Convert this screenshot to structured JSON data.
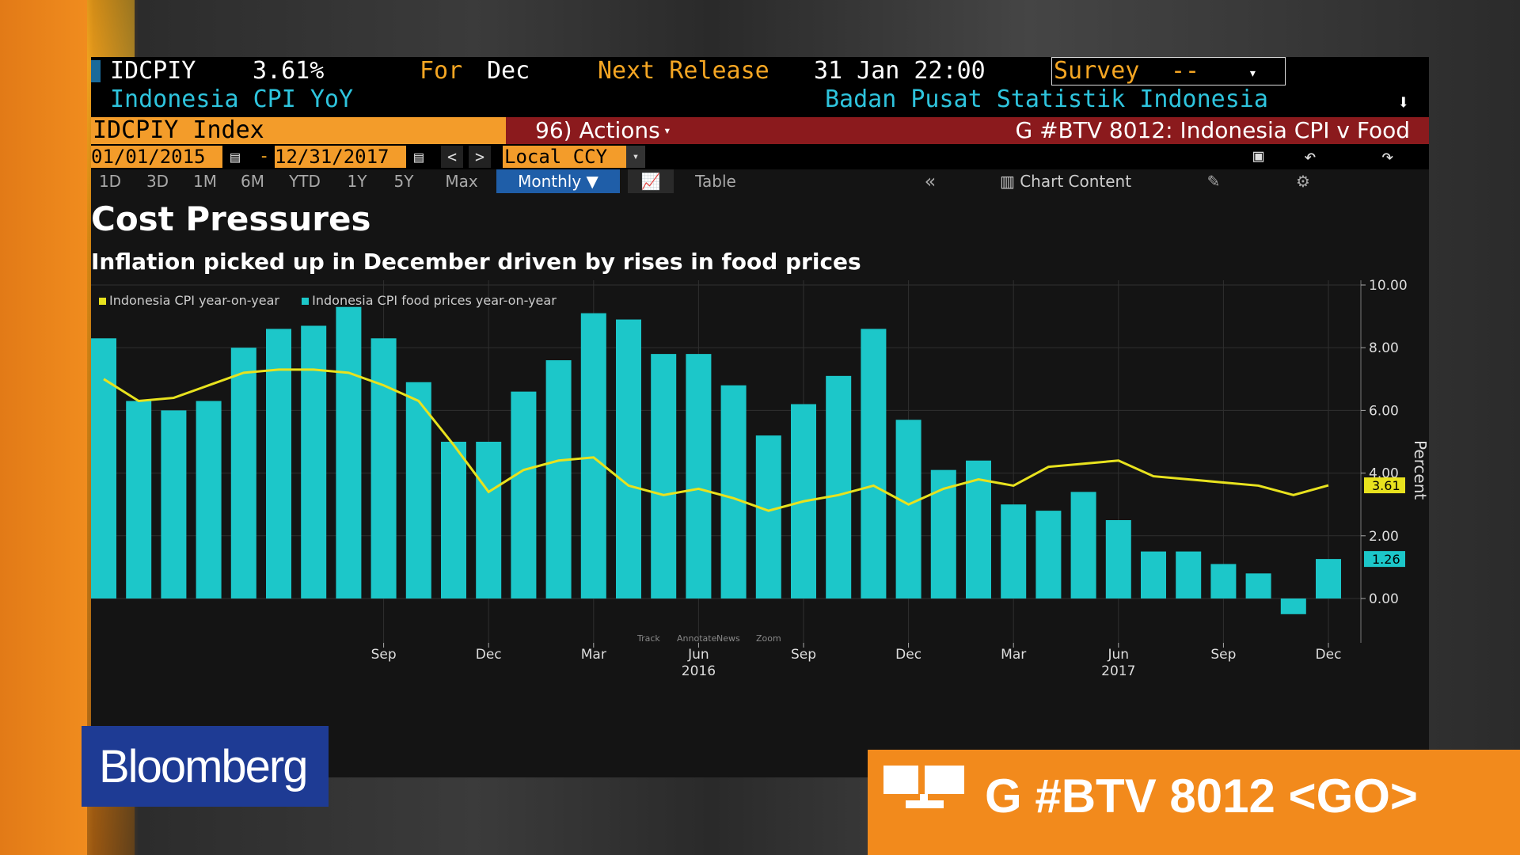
{
  "header": {
    "ticker": "IDCPIY",
    "value": "3.61%",
    "for_label": "For",
    "for_period": "Dec",
    "next_release_label": "Next Release",
    "next_release_value": "31 Jan 22:00",
    "survey_label": "Survey",
    "survey_value": "--",
    "description": "Indonesia CPI YoY",
    "source": "Badan Pusat Statistik Indonesia",
    "security": "IDCPIY Index",
    "actions_label": "96) Actions",
    "function_title": "G #BTV 8012: Indonesia CPI v Food",
    "start_date": "01/01/2015",
    "end_date": "12/31/2017",
    "currency": "Local CCY"
  },
  "toolbar": {
    "periods": [
      "1D",
      "3D",
      "1M",
      "6M",
      "YTD",
      "1Y",
      "5Y",
      "Max"
    ],
    "frequency": "Monthly",
    "table_label": "Table",
    "chart_content_label": "Chart Content",
    "mini_labels": [
      "Track",
      "Annotate",
      "News",
      "Zoom"
    ]
  },
  "chart_data": {
    "type": "bar",
    "title": "Cost Pressures",
    "subtitle": "Inflation picked up in December driven by rises in food prices",
    "ylabel": "Percent",
    "ylim": [
      -1.0,
      10.0
    ],
    "yticks": [
      "10.00",
      "8.00",
      "6.00",
      "4.00",
      "2.00",
      "0.00"
    ],
    "x": [
      "2015-01",
      "2015-02",
      "2015-03",
      "2015-04",
      "2015-05",
      "2015-06",
      "2015-07",
      "2015-08",
      "2015-09",
      "2015-10",
      "2015-11",
      "2015-12",
      "2016-01",
      "2016-02",
      "2016-03",
      "2016-04",
      "2016-05",
      "2016-06",
      "2016-07",
      "2016-08",
      "2016-09",
      "2016-10",
      "2016-11",
      "2016-12",
      "2017-01",
      "2017-02",
      "2017-03",
      "2017-04",
      "2017-05",
      "2017-06",
      "2017-07",
      "2017-08",
      "2017-09",
      "2017-10",
      "2017-11",
      "2017-12"
    ],
    "x_tick_labels": [
      {
        "month": "2015-09",
        "label": "Sep"
      },
      {
        "month": "2015-12",
        "label": "Dec"
      },
      {
        "month": "2016-03",
        "label": "Mar"
      },
      {
        "month": "2016-06",
        "label": "Jun",
        "year": "2016"
      },
      {
        "month": "2016-09",
        "label": "Sep"
      },
      {
        "month": "2016-12",
        "label": "Dec"
      },
      {
        "month": "2017-03",
        "label": "Mar"
      },
      {
        "month": "2017-06",
        "label": "Jun",
        "year": "2017"
      },
      {
        "month": "2017-09",
        "label": "Sep"
      },
      {
        "month": "2017-12",
        "label": "Dec"
      }
    ],
    "series": [
      {
        "name": "Indonesia CPI food prices year-on-year",
        "kind": "bar",
        "color": "#1cc7c9",
        "values": [
          8.3,
          6.3,
          6.0,
          6.3,
          8.0,
          8.6,
          8.7,
          9.3,
          8.3,
          6.9,
          5.0,
          5.0,
          6.6,
          7.6,
          9.1,
          8.9,
          7.8,
          7.8,
          6.8,
          5.2,
          6.2,
          7.1,
          8.6,
          5.7,
          4.1,
          4.4,
          3.0,
          2.8,
          3.4,
          2.5,
          1.5,
          1.5,
          1.1,
          0.8,
          -0.5,
          1.26
        ]
      },
      {
        "name": "Indonesia CPI year-on-year",
        "kind": "line",
        "color": "#e8e21e",
        "values": [
          7.0,
          6.3,
          6.4,
          6.8,
          7.2,
          7.3,
          7.3,
          7.2,
          6.8,
          6.3,
          4.9,
          3.4,
          4.1,
          4.4,
          4.5,
          3.6,
          3.3,
          3.5,
          3.2,
          2.8,
          3.1,
          3.3,
          3.6,
          3.0,
          3.5,
          3.8,
          3.6,
          4.2,
          4.3,
          4.4,
          3.9,
          3.8,
          3.7,
          3.6,
          3.3,
          3.61
        ]
      }
    ],
    "last_value_labels": {
      "line": "3.61",
      "bar": "1.26"
    },
    "colors": {
      "bar": "#1cc7c9",
      "line": "#e8e21e",
      "background": "#141414",
      "grid": "#2f2f2f"
    }
  },
  "overlay": {
    "brand": "Bloomberg",
    "go_command": "G #BTV 8012 <GO>"
  }
}
